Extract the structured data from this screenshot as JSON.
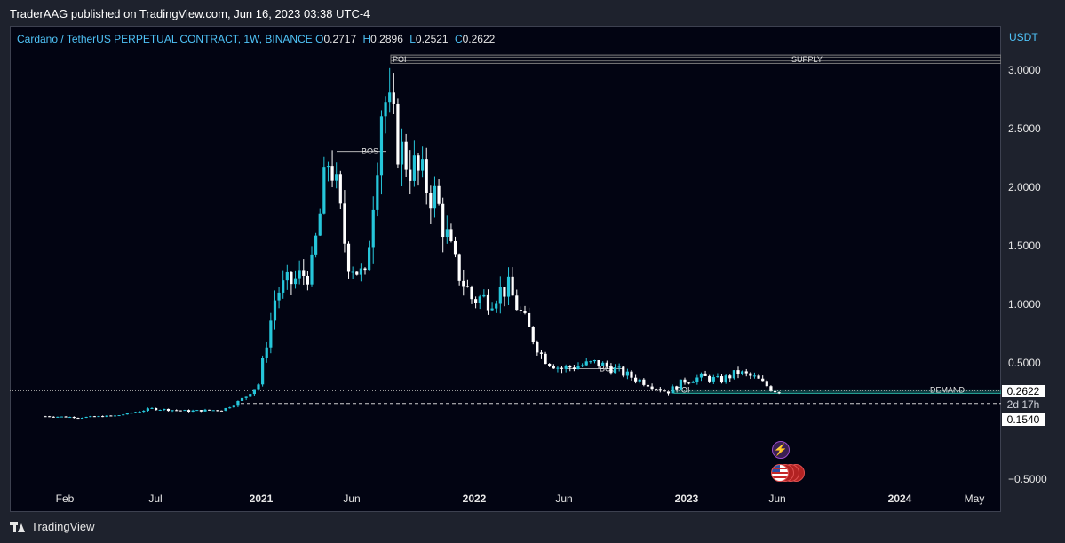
{
  "header": {
    "published": "TraderAAG published on TradingView.com, Jun 16, 2023 03:38 UTC-4"
  },
  "legend": {
    "symbol": "Cardano / TetherUS PERPETUAL CONTRACT, 1W, BINANCE",
    "o_key": "O",
    "o": "0.2717",
    "h_key": "H",
    "h": "0.2896",
    "l_key": "L",
    "l": "0.2521",
    "c_key": "C",
    "c": "0.2622"
  },
  "price_axis": {
    "currency": "USDT",
    "labels": [
      "3.0000",
      "2.5000",
      "2.0000",
      "1.5000",
      "1.0000",
      "0.5000",
      "−0.5000"
    ]
  },
  "time_axis": [
    {
      "label": "Feb",
      "year": false
    },
    {
      "label": "Jul",
      "year": false
    },
    {
      "label": "2021",
      "year": true
    },
    {
      "label": "Jun",
      "year": false
    },
    {
      "label": "2022",
      "year": true
    },
    {
      "label": "Jun",
      "year": false
    },
    {
      "label": "2023",
      "year": true
    },
    {
      "label": "Jun",
      "year": false
    },
    {
      "label": "2024",
      "year": true
    },
    {
      "label": "May",
      "year": false
    }
  ],
  "price_tags": {
    "last": "0.2622",
    "countdown": "2d 17h",
    "level": "0.1540"
  },
  "annotations": {
    "poi_top": "POI",
    "supply": "SUPPLY",
    "bos_1": "BOS",
    "bos_2": "BOS",
    "poi_bottom": "POI",
    "demand": "DEMAND"
  },
  "icons": {
    "event": "flash-icon",
    "country": "us-flag-icon"
  },
  "footer": {
    "brand": "TradingView"
  },
  "colors": {
    "up": "#26c6da",
    "down": "#ffffff",
    "background": "#020412",
    "zone": "#808080",
    "demand_zone": "#26a69a"
  },
  "chart_data": {
    "type": "candlestick",
    "interval": "1W",
    "y_unit": "USDT",
    "ylim": [
      -0.5,
      3.2
    ],
    "grid": false,
    "x_start": "2020-01-06",
    "series": [
      {
        "date": "2020-01",
        "close": 0.045
      },
      {
        "date": "2020-03",
        "close": 0.035
      },
      {
        "date": "2020-05",
        "close": 0.05
      },
      {
        "date": "2020-07",
        "close": 0.11
      },
      {
        "date": "2020-09",
        "close": 0.09
      },
      {
        "date": "2020-11",
        "close": 0.1
      },
      {
        "date": "2020-12",
        "close": 0.18
      },
      {
        "date": "2021-01",
        "close": 0.32
      },
      {
        "date": "2021-02",
        "close": 1.1
      },
      {
        "date": "2021-03",
        "close": 1.2
      },
      {
        "date": "2021-04",
        "close": 1.3
      },
      {
        "date": "2021-05",
        "close": 2.3
      },
      {
        "date": "2021-06",
        "close": 1.4
      },
      {
        "date": "2021-07",
        "close": 1.2
      },
      {
        "date": "2021-08",
        "close": 2.8
      },
      {
        "date": "2021-09",
        "close": 2.3
      },
      {
        "date": "2021-10",
        "close": 2.1
      },
      {
        "date": "2021-11",
        "close": 1.9
      },
      {
        "date": "2021-12",
        "close": 1.35
      },
      {
        "date": "2022-01",
        "close": 1.05
      },
      {
        "date": "2022-02",
        "close": 1.05
      },
      {
        "date": "2022-03",
        "close": 1.15
      },
      {
        "date": "2022-04",
        "close": 0.85
      },
      {
        "date": "2022-05",
        "close": 0.55
      },
      {
        "date": "2022-06",
        "close": 0.45
      },
      {
        "date": "2022-08",
        "close": 0.5
      },
      {
        "date": "2022-09",
        "close": 0.45
      },
      {
        "date": "2022-10",
        "close": 0.38
      },
      {
        "date": "2022-11",
        "close": 0.32
      },
      {
        "date": "2022-12",
        "close": 0.25
      },
      {
        "date": "2023-01",
        "close": 0.35
      },
      {
        "date": "2023-02",
        "close": 0.38
      },
      {
        "date": "2023-03",
        "close": 0.35
      },
      {
        "date": "2023-04",
        "close": 0.42
      },
      {
        "date": "2023-05",
        "close": 0.37
      },
      {
        "date": "2023-06",
        "close": 0.2622
      }
    ],
    "levels": [
      {
        "label": "SUPPLY",
        "from": 3.05,
        "to": 3.12
      },
      {
        "label": "DEMAND",
        "from": 0.24,
        "to": 0.27
      },
      {
        "label": "horizontal line",
        "value": 0.154
      }
    ]
  }
}
